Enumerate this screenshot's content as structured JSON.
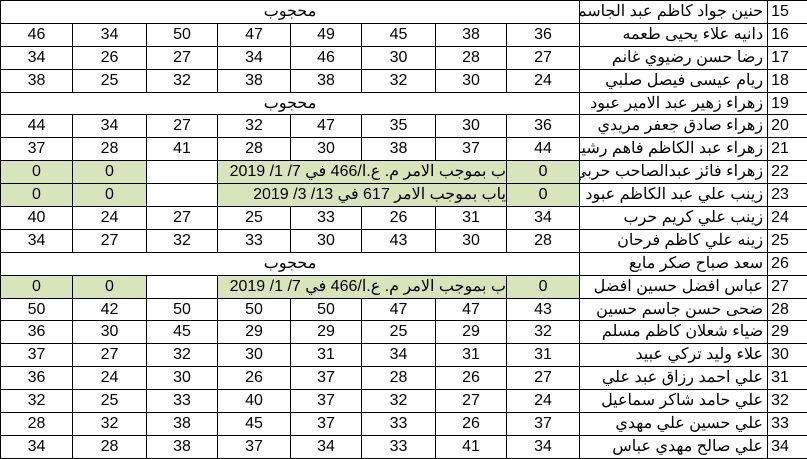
{
  "sheet": {
    "absent_label": "محجوب",
    "green_color": "#d8e4bc",
    "rows": [
      {
        "num": "15",
        "name": "حنين جواد كاظم عبد الجاسم",
        "type": "absent"
      },
      {
        "num": "16",
        "name": "دانيه علاء يحيى طعمه",
        "scores": [
          "46",
          "34",
          "50",
          "47",
          "49",
          "45",
          "38",
          "36"
        ]
      },
      {
        "num": "17",
        "name": "رضا حسن رضيوي غانم",
        "scores": [
          "34",
          "26",
          "27",
          "34",
          "46",
          "30",
          "28",
          "27"
        ]
      },
      {
        "num": "18",
        "name": "ريام عيسى فيصل صلبي",
        "scores": [
          "38",
          "25",
          "32",
          "38",
          "38",
          "32",
          "30",
          "24"
        ]
      },
      {
        "num": "19",
        "name": "زهراء زهير عبد الامير عبود",
        "type": "absent"
      },
      {
        "num": "20",
        "name": "زهراء صادق جعفر مريدي",
        "scores": [
          "44",
          "34",
          "27",
          "32",
          "47",
          "35",
          "30",
          "36"
        ]
      },
      {
        "num": "21",
        "name": "زهراء عبد الكاظم فاهم رشيد",
        "scores": [
          "37",
          "28",
          "41",
          "28",
          "30",
          "38",
          "37",
          "44"
        ]
      },
      {
        "num": "22",
        "name": "زهراء فائز عبدالصاحب حربي",
        "type": "order",
        "left": [
          "0",
          "0"
        ],
        "note": "ب بموجب الامر م. ع.ا/466 في 7/ 1/ 2019",
        "right": "0"
      },
      {
        "num": "23",
        "name": "زينب علي عبد الكاظم عبود",
        "type": "order",
        "left": [
          "0",
          "0"
        ],
        "note": "ياب بموجب الامر  617 في  13/ 3/ 2019",
        "right": "0"
      },
      {
        "num": "24",
        "name": "زينب علي كريم حرب",
        "scores": [
          "40",
          "24",
          "27",
          "25",
          "33",
          "26",
          "31",
          "34"
        ]
      },
      {
        "num": "25",
        "name": "زينه علي كاظم فرحان",
        "scores": [
          "34",
          "27",
          "32",
          "33",
          "30",
          "43",
          "30",
          "28"
        ]
      },
      {
        "num": "26",
        "name": "سعد صباح صكر مايع",
        "type": "absent"
      },
      {
        "num": "27",
        "name": "عباس افضل حسين افضل",
        "type": "order",
        "left": [
          "0",
          "0"
        ],
        "note": "ب بموجب الامر م. ع.ا/466 في 7/ 1/ 2019",
        "right": "0"
      },
      {
        "num": "28",
        "name": "ضحى حسن جاسم حسين",
        "scores": [
          "50",
          "42",
          "50",
          "50",
          "50",
          "47",
          "47",
          "43"
        ]
      },
      {
        "num": "29",
        "name": "ضياء شعلان كاظم مسلم",
        "scores": [
          "36",
          "30",
          "45",
          "29",
          "29",
          "25",
          "29",
          "32"
        ]
      },
      {
        "num": "30",
        "name": "علاء وليد تركي عبيد",
        "scores": [
          "37",
          "27",
          "32",
          "30",
          "31",
          "34",
          "31",
          "31"
        ]
      },
      {
        "num": "31",
        "name": "علي احمد رزاق عبد علي",
        "scores": [
          "36",
          "24",
          "30",
          "26",
          "37",
          "28",
          "26",
          "27"
        ]
      },
      {
        "num": "32",
        "name": "علي حامد شاكر سماعيل",
        "scores": [
          "32",
          "25",
          "33",
          "40",
          "37",
          "32",
          "27",
          "24"
        ]
      },
      {
        "num": "33",
        "name": "علي حسين علي مهدي",
        "scores": [
          "28",
          "32",
          "38",
          "45",
          "37",
          "33",
          "26",
          "37"
        ]
      },
      {
        "num": "34",
        "name": "علي صالح مهدي عباس",
        "scores": [
          "34",
          "28",
          "38",
          "37",
          "34",
          "33",
          "41",
          "34"
        ]
      }
    ]
  }
}
